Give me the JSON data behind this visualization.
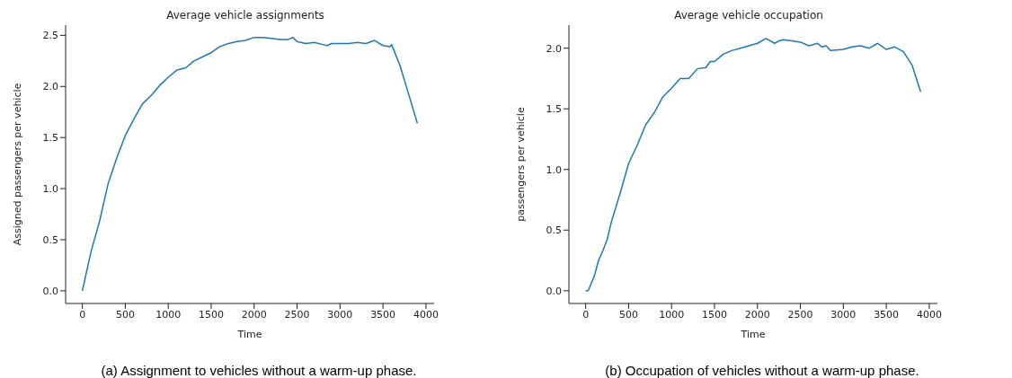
{
  "chart_data": [
    {
      "type": "line",
      "title": "Average vehicle assignments",
      "xlabel": "Time",
      "ylabel": "Assigned passengers per vehicle",
      "annotations": [
        "(a) Assignment to vehicles without a warm-up phase."
      ],
      "x": [
        0,
        100,
        200,
        300,
        400,
        500,
        600,
        700,
        800,
        900,
        1000,
        1100,
        1200,
        1300,
        1400,
        1500,
        1600,
        1700,
        1800,
        1900,
        2000,
        2100,
        2200,
        2300,
        2400,
        2450,
        2500,
        2600,
        2700,
        2800,
        2850,
        2900,
        3000,
        3100,
        3200,
        3300,
        3400,
        3500,
        3580,
        3600,
        3700,
        3800,
        3900
      ],
      "series": [
        {
          "color": "#1f77b4",
          "values": [
            0,
            0.38,
            0.68,
            1.05,
            1.3,
            1.52,
            1.68,
            1.83,
            1.91,
            2.01,
            2.09,
            2.16,
            2.18,
            2.25,
            2.29,
            2.33,
            2.39,
            2.42,
            2.44,
            2.45,
            2.48,
            2.48,
            2.47,
            2.46,
            2.46,
            2.48,
            2.44,
            2.42,
            2.43,
            2.41,
            2.4,
            2.42,
            2.42,
            2.42,
            2.43,
            2.42,
            2.45,
            2.4,
            2.39,
            2.41,
            2.2,
            1.92,
            1.64
          ]
        }
      ],
      "xlim": [
        -195,
        4095
      ],
      "xticks": [
        0,
        500,
        1000,
        1500,
        2000,
        2500,
        3000,
        3500,
        4000
      ],
      "ylim": [
        -0.124,
        2.6
      ],
      "yticks": [
        {
          "value": 0,
          "label": "0.0"
        },
        {
          "value": 0.5,
          "label": "0.5"
        },
        {
          "value": 1,
          "label": "1.0"
        },
        {
          "value": 1.5,
          "label": "1.5"
        },
        {
          "value": 2,
          "label": "2.0"
        },
        {
          "value": 2.5,
          "label": "2.5"
        }
      ],
      "grid": false,
      "legend": false,
      "marker": "none",
      "line_style": "solid"
    },
    {
      "type": "line",
      "title": "Average vehicle occupation",
      "xlabel": "Time",
      "ylabel": "passengers per vehicle",
      "annotations": [
        "(b) Occupation of vehicles without a warm-up phase."
      ],
      "x": [
        0,
        30,
        100,
        150,
        200,
        250,
        300,
        400,
        500,
        600,
        700,
        800,
        900,
        1000,
        1100,
        1200,
        1300,
        1400,
        1450,
        1500,
        1600,
        1700,
        1800,
        1900,
        2000,
        2100,
        2200,
        2250,
        2300,
        2400,
        2500,
        2600,
        2700,
        2750,
        2800,
        2850,
        3000,
        3100,
        3200,
        3300,
        3400,
        3500,
        3600,
        3700,
        3800,
        3900
      ],
      "series": [
        {
          "color": "#1f77b4",
          "values": [
            0,
            0,
            0.12,
            0.25,
            0.33,
            0.42,
            0.57,
            0.8,
            1.05,
            1.2,
            1.37,
            1.47,
            1.6,
            1.67,
            1.75,
            1.75,
            1.83,
            1.84,
            1.89,
            1.89,
            1.95,
            1.98,
            2,
            2.02,
            2.04,
            2.08,
            2.04,
            2.06,
            2.07,
            2.06,
            2.05,
            2.02,
            2.04,
            2.01,
            2.02,
            1.98,
            1.99,
            2.01,
            2.02,
            2,
            2.04,
            1.99,
            2.01,
            1.97,
            1.86,
            1.64
          ]
        }
      ],
      "xlim": [
        -195,
        4095
      ],
      "xticks": [
        0,
        500,
        1000,
        1500,
        2000,
        2500,
        3000,
        3500,
        4000
      ],
      "ylim": [
        -0.105,
        2.19
      ],
      "yticks": [
        {
          "value": 0,
          "label": "0.0"
        },
        {
          "value": 0.5,
          "label": "0.5"
        },
        {
          "value": 1,
          "label": "1.0"
        },
        {
          "value": 1.5,
          "label": "1.5"
        },
        {
          "value": 2,
          "label": "2.0"
        }
      ],
      "grid": false,
      "legend": false,
      "marker": "none",
      "line_style": "solid"
    }
  ]
}
